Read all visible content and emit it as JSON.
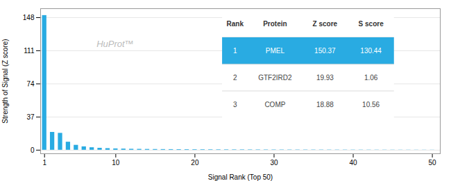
{
  "chart_data": {
    "type": "bar",
    "title": "HuProt™",
    "xlabel": "Signal Rank (Top 50)",
    "ylabel": "Strength of Signal (Z score)",
    "x": [
      1,
      2,
      3,
      4,
      5,
      6,
      7,
      8,
      9,
      10,
      11,
      12,
      13,
      14,
      15,
      16,
      17,
      18,
      19,
      20,
      21,
      22,
      23,
      24,
      25,
      26,
      27,
      28,
      29,
      30,
      31,
      32,
      33,
      34,
      35,
      36,
      37,
      38,
      39,
      40,
      41,
      42,
      43,
      44,
      45,
      46,
      47,
      48,
      49,
      50
    ],
    "values": [
      150.37,
      19.93,
      18.88,
      9.0,
      5.5,
      3.8,
      2.8,
      2.2,
      1.8,
      1.5,
      1.3,
      1.1,
      1.0,
      0.9,
      0.82,
      0.75,
      0.7,
      0.65,
      0.61,
      0.57,
      0.54,
      0.51,
      0.48,
      0.46,
      0.44,
      0.42,
      0.4,
      0.38,
      0.36,
      0.34,
      0.32,
      0.31,
      0.3,
      0.29,
      0.28,
      0.27,
      0.26,
      0.25,
      0.24,
      0.23,
      0.22,
      0.21,
      0.2,
      0.19,
      0.18,
      0.17,
      0.16,
      0.15,
      0.14,
      0.13
    ],
    "color": "#29ABE2",
    "xlim": [
      0.5,
      51
    ],
    "ylim": [
      -4,
      158
    ],
    "xticks": [
      1,
      10,
      20,
      30,
      40,
      50
    ],
    "yticks": [
      0,
      37,
      74,
      111,
      148
    ],
    "grid": true,
    "table": {
      "headers": [
        "Rank",
        "Protein",
        "Z score",
        "S score"
      ],
      "rows": [
        [
          "1",
          "PMEL",
          "150.37",
          "130.44"
        ],
        [
          "2",
          "GTF2IRD2",
          "19.93",
          "1.06"
        ],
        [
          "3",
          "COMP",
          "18.88",
          "10.56"
        ]
      ]
    }
  }
}
